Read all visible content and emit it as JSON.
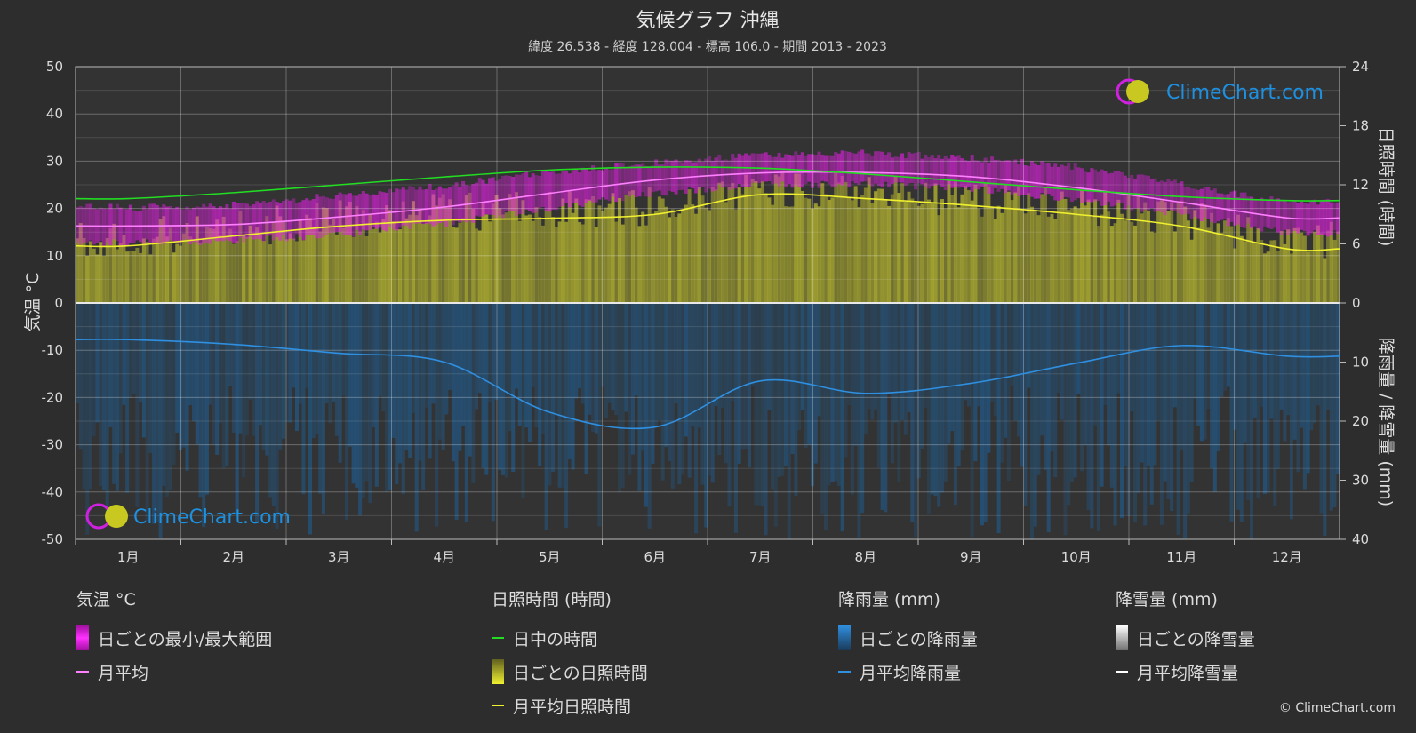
{
  "title": "気候グラフ 沖縄",
  "subtitle": "緯度 26.538 - 経度 128.004 - 標高 106.0 - 期間 2013 - 2023",
  "copyright": "© ClimeChart.com",
  "watermark": "ClimeChart.com",
  "colors": {
    "background": "#2d2d2d",
    "temp_range": "#e020e0",
    "temp_avg": "#ff80ff",
    "daylight": "#22dd22",
    "sunshine_fill": "#b8b830",
    "sunshine_avg": "#f0f030",
    "rain_fill": "#1e5f96",
    "rain_avg": "#2f8fe0",
    "snow_avg": "#ffffff"
  },
  "legend": {
    "temp": {
      "title": "気温 °C",
      "range": "日ごとの最小/最大範囲",
      "avg": "月平均"
    },
    "sun": {
      "title": "日照時間 (時間)",
      "daylight": "日中の時間",
      "daily": "日ごとの日照時間",
      "avg": "月平均日照時間"
    },
    "rain": {
      "title": "降雨量 (mm)",
      "daily": "日ごとの降雨量",
      "avg": "月平均降雨量"
    },
    "snow": {
      "title": "降雪量 (mm)",
      "daily": "日ごとの降雪量",
      "avg": "月平均降雪量"
    }
  },
  "chart_data": {
    "type": "line",
    "categories": [
      "1月",
      "2月",
      "3月",
      "4月",
      "5月",
      "6月",
      "7月",
      "8月",
      "9月",
      "10月",
      "11月",
      "12月"
    ],
    "y_left": {
      "label": "気温 °C",
      "min": -50,
      "max": 50,
      "ticks": [
        50,
        40,
        30,
        20,
        10,
        0,
        -10,
        -20,
        -30,
        -40,
        -50
      ]
    },
    "y_right_top": {
      "label": "日照時間 (時間)",
      "min": 0,
      "max": 24,
      "ticks": [
        24,
        18,
        12,
        6,
        0
      ]
    },
    "y_right_bottom": {
      "label": "降雨量 / 降雪量 (mm)",
      "min": 0,
      "max": 40,
      "ticks": [
        0,
        10,
        20,
        30,
        40
      ]
    },
    "grid": true,
    "series": [
      {
        "name": "月平均",
        "axis": "temp",
        "values": [
          16.3,
          16.6,
          18.2,
          20.3,
          23.2,
          26.0,
          27.5,
          27.6,
          26.7,
          24.4,
          21.3,
          18.0
        ]
      },
      {
        "name": "日中の時間",
        "axis": "sunshine",
        "values": [
          10.6,
          11.2,
          12.0,
          12.8,
          13.5,
          13.8,
          13.7,
          13.1,
          12.3,
          11.5,
          10.8,
          10.4
        ]
      },
      {
        "name": "月平均日照時間",
        "axis": "sunshine",
        "values": [
          5.8,
          6.8,
          7.8,
          8.4,
          8.6,
          9.0,
          11.0,
          10.6,
          9.9,
          9.0,
          7.8,
          5.5
        ]
      },
      {
        "name": "月平均降雨量",
        "axis": "rain",
        "values": [
          6.2,
          7.0,
          8.5,
          10.0,
          18.5,
          21.0,
          13.2,
          15.3,
          13.6,
          10.2,
          7.2,
          9.0
        ]
      },
      {
        "name": "月平均降雪量",
        "axis": "rain",
        "values": [
          0,
          0,
          0,
          0,
          0,
          0,
          0,
          0,
          0,
          0,
          0,
          0
        ]
      }
    ],
    "daily_temp_min": [
      13.5,
      13.8,
      15.2,
      17.5,
      20.8,
      24.0,
      25.8,
      25.8,
      25.0,
      22.6,
      19.5,
      15.5
    ],
    "daily_temp_max": [
      19.5,
      20.0,
      22.0,
      24.0,
      27.0,
      29.0,
      30.5,
      31.0,
      30.0,
      28.0,
      24.5,
      20.5
    ]
  }
}
